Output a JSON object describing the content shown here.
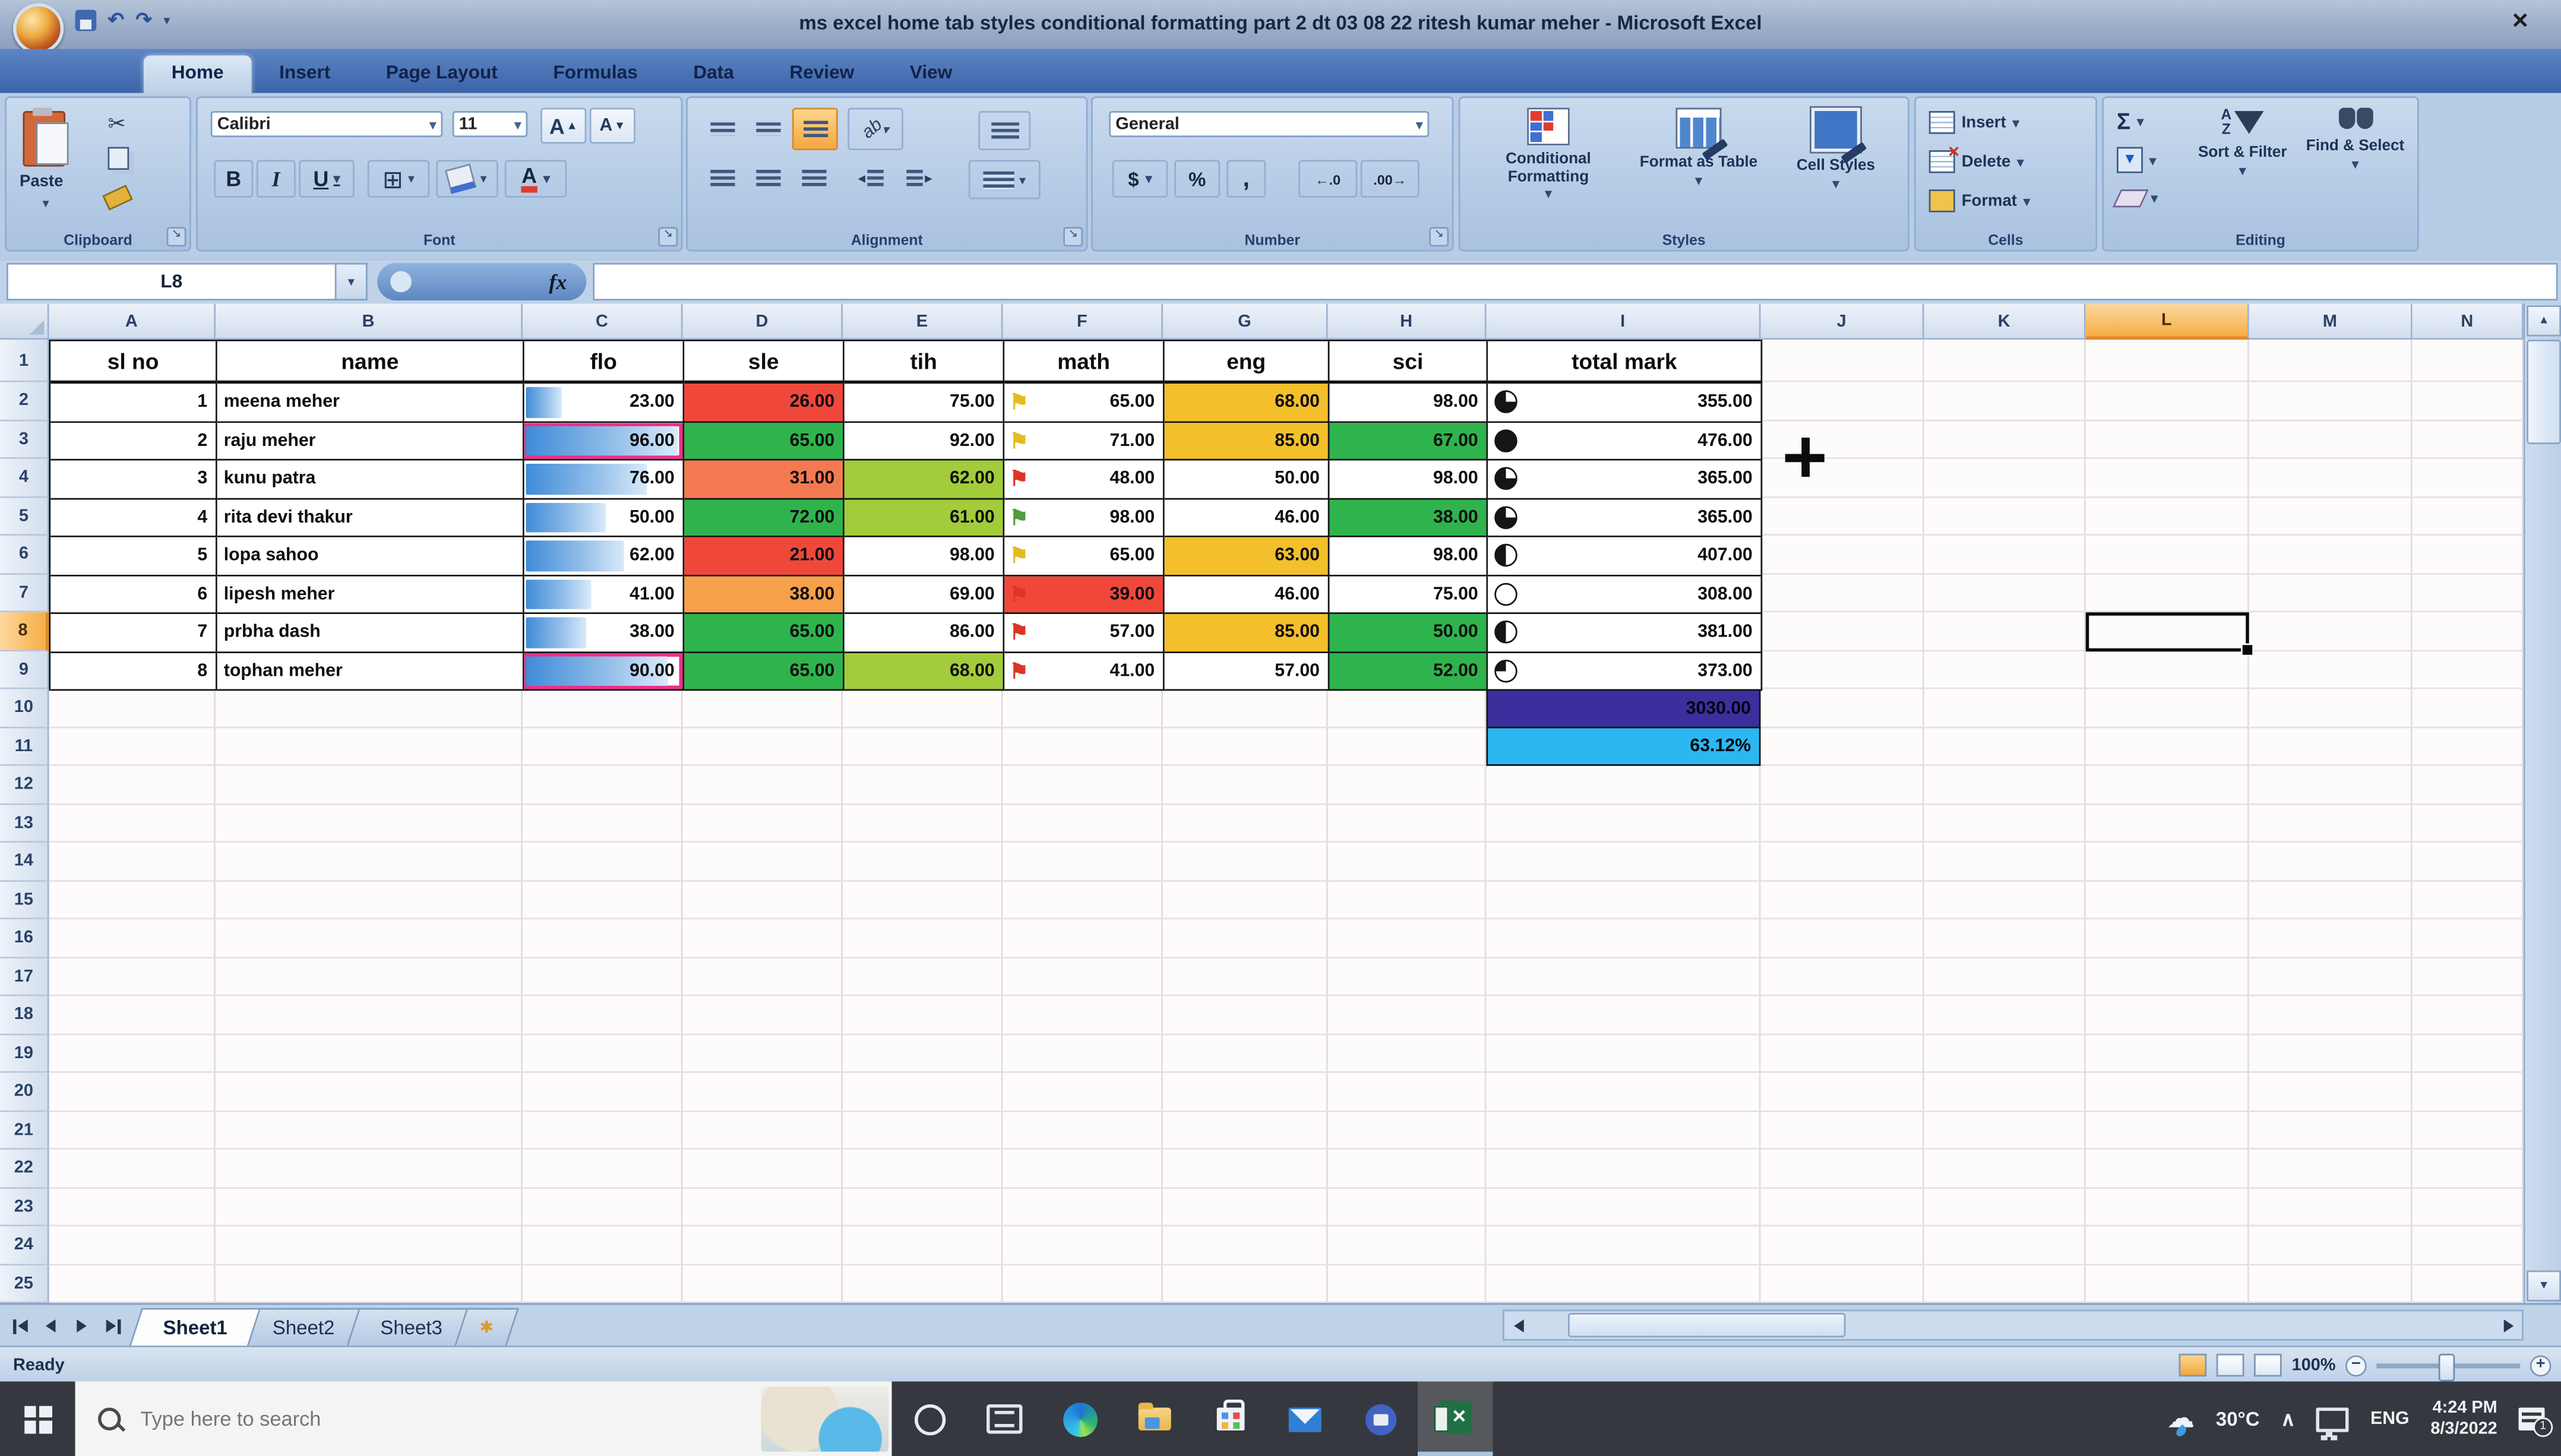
{
  "title_bar": {
    "title": "ms excel home tab styles conditional formatting part 2 dt 03 08 22 ritesh kumar meher - Microsoft Excel",
    "close_glyph": "✕"
  },
  "ribbon": {
    "tabs": [
      {
        "label": "Home",
        "active": true
      },
      {
        "label": "Insert",
        "active": false
      },
      {
        "label": "Page Layout",
        "active": false
      },
      {
        "label": "Formulas",
        "active": false
      },
      {
        "label": "Data",
        "active": false
      },
      {
        "label": "Review",
        "active": false
      },
      {
        "label": "View",
        "active": false
      }
    ],
    "clipboard": {
      "label": "Clipboard",
      "paste": "Paste"
    },
    "font": {
      "label": "Font",
      "family": "Calibri",
      "size": "11",
      "bold": "B",
      "italic": "I",
      "underline": "U",
      "grow": "A",
      "shrink": "A"
    },
    "alignment": {
      "label": "Alignment"
    },
    "number": {
      "label": "Number",
      "format": "General",
      "currency": "$",
      "percent": "%",
      "comma": ",",
      "inc_decimal": "←.0",
      "dec_decimal": ".00→"
    },
    "styles": {
      "label": "Styles",
      "conditional": "Conditional Formatting",
      "format_table": "Format as Table",
      "cell_styles": "Cell Styles"
    },
    "cells": {
      "label": "Cells",
      "insert": "Insert",
      "delete": "Delete",
      "format": "Format"
    },
    "editing": {
      "label": "Editing",
      "autosum": "Σ",
      "sort_filter": "Sort & Filter",
      "find_select": "Find & Select"
    }
  },
  "formula_bar": {
    "name_box": "L8",
    "fx": "fx",
    "content": ""
  },
  "grid": {
    "columns": [
      "A",
      "B",
      "C",
      "D",
      "E",
      "F",
      "G",
      "H",
      "I",
      "J",
      "K",
      "L",
      "M",
      "N"
    ],
    "selected_column": "L",
    "selected_row": 8,
    "visible_rows": 25,
    "headers": [
      "sl no",
      "name",
      "flo",
      "sle",
      "tih",
      "math",
      "eng",
      "sci",
      "total mark"
    ],
    "rows": [
      {
        "no": "1",
        "name": "meena meher",
        "flo": "23.00",
        "flo_pct": 23,
        "flo_selected": false,
        "sle": "26.00",
        "sle_bg": "red",
        "tih": "75.00",
        "tih_bg": null,
        "math": "65.00",
        "math_flag": "flag_yellow",
        "math_bg": null,
        "eng": "68.00",
        "eng_bg": "gold",
        "sci": "98.00",
        "sci_bg": null,
        "total": "355.00",
        "pie_fill": 0.75
      },
      {
        "no": "2",
        "name": "raju meher",
        "flo": "96.00",
        "flo_pct": 96,
        "flo_selected": true,
        "sle": "65.00",
        "sle_bg": "green",
        "tih": "92.00",
        "tih_bg": null,
        "math": "71.00",
        "math_flag": "flag_yellow",
        "math_bg": null,
        "eng": "85.00",
        "eng_bg": "gold",
        "sci": "67.00",
        "sci_bg": "green",
        "total": "476.00",
        "pie_fill": 1
      },
      {
        "no": "3",
        "name": "kunu patra",
        "flo": "76.00",
        "flo_pct": 76,
        "flo_selected": false,
        "sle": "31.00",
        "sle_bg": "orange_red",
        "tih": "62.00",
        "tih_bg": "yellow_green",
        "math": "48.00",
        "math_flag": "flag_red",
        "math_bg": null,
        "eng": "50.00",
        "eng_bg": null,
        "sci": "98.00",
        "sci_bg": null,
        "total": "365.00",
        "pie_fill": 0.75
      },
      {
        "no": "4",
        "name": "rita devi thakur",
        "flo": "50.00",
        "flo_pct": 50,
        "flo_selected": false,
        "sle": "72.00",
        "sle_bg": "green",
        "tih": "61.00",
        "tih_bg": "yellow_green",
        "math": "98.00",
        "math_flag": "flag_green",
        "math_bg": null,
        "eng": "46.00",
        "eng_bg": null,
        "sci": "38.00",
        "sci_bg": "green",
        "total": "365.00",
        "pie_fill": 0.75
      },
      {
        "no": "5",
        "name": "lopa sahoo",
        "flo": "62.00",
        "flo_pct": 62,
        "flo_selected": false,
        "sle": "21.00",
        "sle_bg": "red",
        "tih": "98.00",
        "tih_bg": null,
        "math": "65.00",
        "math_flag": "flag_yellow",
        "math_bg": null,
        "eng": "63.00",
        "eng_bg": "gold",
        "sci": "98.00",
        "sci_bg": null,
        "total": "407.00",
        "pie_fill": 0.5
      },
      {
        "no": "6",
        "name": "lipesh meher",
        "flo": "41.00",
        "flo_pct": 41,
        "flo_selected": false,
        "sle": "38.00",
        "sle_bg": "orange",
        "tih": "69.00",
        "tih_bg": null,
        "math": "39.00",
        "math_flag": "flag_red",
        "math_bg": "red",
        "eng": "46.00",
        "eng_bg": null,
        "sci": "75.00",
        "sci_bg": null,
        "total": "308.00",
        "pie_fill": 0
      },
      {
        "no": "7",
        "name": "prbha dash",
        "flo": "38.00",
        "flo_pct": 38,
        "flo_selected": false,
        "sle": "65.00",
        "sle_bg": "green",
        "tih": "86.00",
        "tih_bg": null,
        "math": "57.00",
        "math_flag": "flag_red",
        "math_bg": null,
        "eng": "85.00",
        "eng_bg": "gold",
        "sci": "50.00",
        "sci_bg": "green",
        "total": "381.00",
        "pie_fill": 0.5
      },
      {
        "no": "8",
        "name": "tophan meher",
        "flo": "90.00",
        "flo_pct": 90,
        "flo_selected": true,
        "sle": "65.00",
        "sle_bg": "green",
        "tih": "68.00",
        "tih_bg": "yellow_green",
        "math": "41.00",
        "math_flag": "flag_red",
        "math_bg": null,
        "eng": "57.00",
        "eng_bg": null,
        "sci": "52.00",
        "sci_bg": "green",
        "total": "373.00",
        "pie_fill": 0.25
      }
    ],
    "summary": {
      "grand_total": "3030.00",
      "percentage": "63.12%"
    },
    "colors": {
      "red": "#f0473b",
      "orange_red": "#f37a50",
      "orange": "#f6a04a",
      "gold": "#f3bf2b",
      "green": "#2fb44d",
      "yellow_green": "#a3cc3b",
      "bar_blue": "#3f8bd8",
      "purple": "#3b2f9e",
      "cyan": "#2bb8f1",
      "selection_pink": "#ee2f8e",
      "flag_yellow": "#e3bd1d",
      "flag_red": "#dd3526",
      "flag_green": "#4e9e3d"
    }
  },
  "sheet_bar": {
    "tabs": [
      {
        "label": "Sheet1",
        "active": true
      },
      {
        "label": "Sheet2",
        "active": false
      },
      {
        "label": "Sheet3",
        "active": false
      }
    ]
  },
  "status_bar": {
    "mode": "Ready",
    "zoom": "100%"
  },
  "taskbar": {
    "search_placeholder": "Type here to search",
    "tray": {
      "temperature": "30°C",
      "language": "ENG",
      "time": "4:24 PM",
      "date": "8/3/2022"
    }
  }
}
